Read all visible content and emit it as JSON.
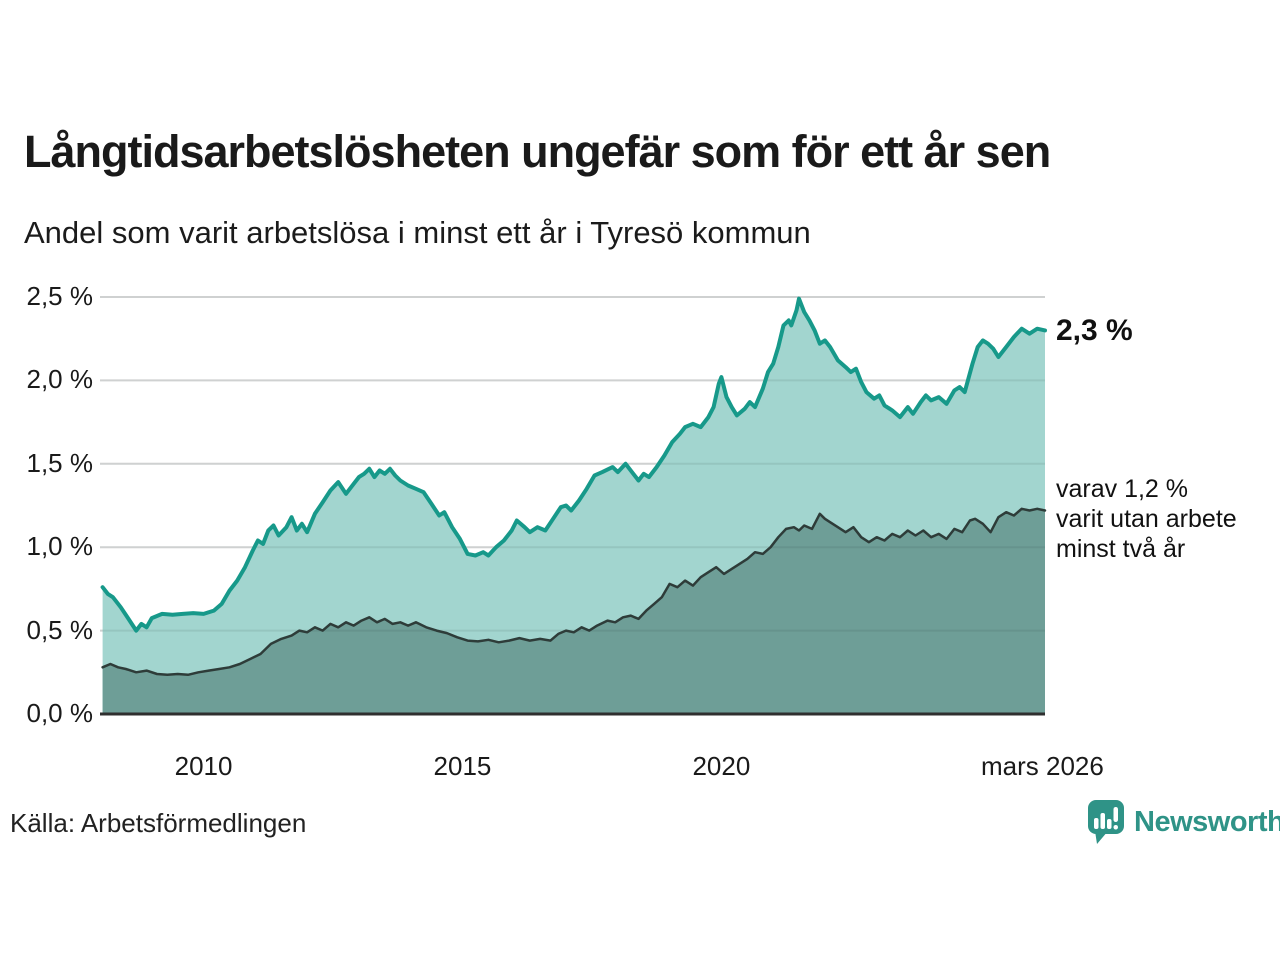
{
  "header": {
    "title": "Långtidsarbetslösheten ungefär som för ett år sen",
    "subtitle": "Andel som varit arbetslösa i minst ett år i Tyresö kommun"
  },
  "annotations": {
    "end_label": "2,3 %",
    "inner_label_lines": [
      "varav 1,2 %",
      "varit utan arbete",
      "minst två år"
    ]
  },
  "footer": {
    "source": "Källa: Arbetsförmedlingen",
    "logo_text": "Newsworthy"
  },
  "colors": {
    "series1_line": "#17998a",
    "series1_fill": "#a2d5cf",
    "series2_line": "#2e3c39",
    "series2_fill": "#6e9e97",
    "grid": "#e2e2e2",
    "grid_overlay": "rgba(40,60,55,0.10)",
    "axis_line": "#2f2f2f",
    "logo_teal": "#2f9387"
  },
  "chart_data": {
    "type": "area",
    "title": "Långtidsarbetslösheten ungefär som för ett år sen",
    "subtitle": "Andel som varit arbetslösa i minst ett år i Tyresö kommun",
    "unit": "%",
    "grid": true,
    "legend_position": "right-annotations",
    "x_axis": {
      "domain": [
        2008.0,
        2026.25
      ],
      "ticks": [
        2010,
        2015,
        2020,
        2026.2
      ],
      "tick_labels": [
        "2010",
        "2015",
        "2020",
        "mars 2026"
      ]
    },
    "y_axis": {
      "domain": [
        0,
        2.5
      ],
      "ticks": [
        0,
        0.5,
        1.0,
        1.5,
        2.0,
        2.5
      ],
      "tick_labels": [
        "0,0 %",
        "0,5 %",
        "1,0 %",
        "1,5 %",
        "2,0 %",
        "2,5 %"
      ]
    },
    "series": [
      {
        "name": "Arbetslösa minst ett år",
        "end_value": 2.3,
        "end_value_label": "2,3 %",
        "points": [
          [
            2008.05,
            0.76
          ],
          [
            2008.15,
            0.72
          ],
          [
            2008.25,
            0.7
          ],
          [
            2008.4,
            0.64
          ],
          [
            2008.55,
            0.57
          ],
          [
            2008.7,
            0.5
          ],
          [
            2008.8,
            0.54
          ],
          [
            2008.9,
            0.52
          ],
          [
            2009.0,
            0.575
          ],
          [
            2009.2,
            0.6
          ],
          [
            2009.4,
            0.595
          ],
          [
            2009.6,
            0.6
          ],
          [
            2009.8,
            0.605
          ],
          [
            2010.0,
            0.6
          ],
          [
            2010.2,
            0.62
          ],
          [
            2010.35,
            0.66
          ],
          [
            2010.5,
            0.74
          ],
          [
            2010.65,
            0.8
          ],
          [
            2010.8,
            0.88
          ],
          [
            2010.95,
            0.98
          ],
          [
            2011.05,
            1.04
          ],
          [
            2011.15,
            1.02
          ],
          [
            2011.25,
            1.1
          ],
          [
            2011.35,
            1.13
          ],
          [
            2011.45,
            1.07
          ],
          [
            2011.6,
            1.12
          ],
          [
            2011.7,
            1.18
          ],
          [
            2011.8,
            1.1
          ],
          [
            2011.9,
            1.14
          ],
          [
            2012.0,
            1.09
          ],
          [
            2012.15,
            1.2
          ],
          [
            2012.3,
            1.27
          ],
          [
            2012.45,
            1.34
          ],
          [
            2012.6,
            1.39
          ],
          [
            2012.75,
            1.32
          ],
          [
            2012.9,
            1.38
          ],
          [
            2013.0,
            1.42
          ],
          [
            2013.1,
            1.44
          ],
          [
            2013.2,
            1.47
          ],
          [
            2013.3,
            1.42
          ],
          [
            2013.4,
            1.46
          ],
          [
            2013.5,
            1.44
          ],
          [
            2013.6,
            1.47
          ],
          [
            2013.7,
            1.43
          ],
          [
            2013.8,
            1.4
          ],
          [
            2013.95,
            1.37
          ],
          [
            2014.1,
            1.35
          ],
          [
            2014.25,
            1.33
          ],
          [
            2014.4,
            1.26
          ],
          [
            2014.55,
            1.19
          ],
          [
            2014.65,
            1.21
          ],
          [
            2014.8,
            1.12
          ],
          [
            2014.95,
            1.05
          ],
          [
            2015.1,
            0.96
          ],
          [
            2015.25,
            0.95
          ],
          [
            2015.4,
            0.97
          ],
          [
            2015.5,
            0.95
          ],
          [
            2015.65,
            1.0
          ],
          [
            2015.8,
            1.04
          ],
          [
            2015.95,
            1.1
          ],
          [
            2016.05,
            1.16
          ],
          [
            2016.2,
            1.12
          ],
          [
            2016.3,
            1.09
          ],
          [
            2016.45,
            1.12
          ],
          [
            2016.6,
            1.1
          ],
          [
            2016.75,
            1.17
          ],
          [
            2016.9,
            1.24
          ],
          [
            2017.0,
            1.25
          ],
          [
            2017.1,
            1.22
          ],
          [
            2017.25,
            1.28
          ],
          [
            2017.4,
            1.35
          ],
          [
            2017.55,
            1.43
          ],
          [
            2017.7,
            1.45
          ],
          [
            2017.9,
            1.48
          ],
          [
            2018.0,
            1.45
          ],
          [
            2018.15,
            1.5
          ],
          [
            2018.3,
            1.44
          ],
          [
            2018.4,
            1.4
          ],
          [
            2018.5,
            1.44
          ],
          [
            2018.6,
            1.42
          ],
          [
            2018.75,
            1.48
          ],
          [
            2018.9,
            1.55
          ],
          [
            2019.05,
            1.63
          ],
          [
            2019.2,
            1.68
          ],
          [
            2019.3,
            1.72
          ],
          [
            2019.45,
            1.74
          ],
          [
            2019.6,
            1.72
          ],
          [
            2019.75,
            1.78
          ],
          [
            2019.85,
            1.84
          ],
          [
            2019.95,
            1.98
          ],
          [
            2020.0,
            2.02
          ],
          [
            2020.1,
            1.9
          ],
          [
            2020.2,
            1.84
          ],
          [
            2020.3,
            1.79
          ],
          [
            2020.45,
            1.83
          ],
          [
            2020.55,
            1.87
          ],
          [
            2020.65,
            1.84
          ],
          [
            2020.8,
            1.95
          ],
          [
            2020.9,
            2.05
          ],
          [
            2021.0,
            2.1
          ],
          [
            2021.1,
            2.2
          ],
          [
            2021.2,
            2.33
          ],
          [
            2021.3,
            2.36
          ],
          [
            2021.35,
            2.33
          ],
          [
            2021.45,
            2.42
          ],
          [
            2021.5,
            2.49
          ],
          [
            2021.6,
            2.41
          ],
          [
            2021.7,
            2.36
          ],
          [
            2021.8,
            2.3
          ],
          [
            2021.9,
            2.22
          ],
          [
            2022.0,
            2.24
          ],
          [
            2022.1,
            2.2
          ],
          [
            2022.25,
            2.12
          ],
          [
            2022.4,
            2.08
          ],
          [
            2022.5,
            2.05
          ],
          [
            2022.6,
            2.07
          ],
          [
            2022.7,
            1.99
          ],
          [
            2022.8,
            1.93
          ],
          [
            2022.95,
            1.89
          ],
          [
            2023.05,
            1.91
          ],
          [
            2023.15,
            1.85
          ],
          [
            2023.3,
            1.82
          ],
          [
            2023.45,
            1.78
          ],
          [
            2023.6,
            1.84
          ],
          [
            2023.7,
            1.8
          ],
          [
            2023.85,
            1.87
          ],
          [
            2023.95,
            1.91
          ],
          [
            2024.05,
            1.88
          ],
          [
            2024.2,
            1.9
          ],
          [
            2024.35,
            1.86
          ],
          [
            2024.5,
            1.94
          ],
          [
            2024.6,
            1.96
          ],
          [
            2024.7,
            1.93
          ],
          [
            2024.85,
            2.1
          ],
          [
            2024.95,
            2.2
          ],
          [
            2025.05,
            2.24
          ],
          [
            2025.15,
            2.22
          ],
          [
            2025.25,
            2.19
          ],
          [
            2025.35,
            2.14
          ],
          [
            2025.5,
            2.2
          ],
          [
            2025.65,
            2.26
          ],
          [
            2025.8,
            2.31
          ],
          [
            2025.95,
            2.28
          ],
          [
            2026.1,
            2.31
          ],
          [
            2026.25,
            2.3
          ]
        ]
      },
      {
        "name": "varav utan arbete minst två år",
        "end_value": 1.2,
        "end_value_label": "varav 1,2 % varit utan arbete minst två år",
        "points": [
          [
            2008.05,
            0.28
          ],
          [
            2008.2,
            0.3
          ],
          [
            2008.35,
            0.28
          ],
          [
            2008.5,
            0.27
          ],
          [
            2008.7,
            0.25
          ],
          [
            2008.9,
            0.26
          ],
          [
            2009.1,
            0.24
          ],
          [
            2009.3,
            0.235
          ],
          [
            2009.5,
            0.24
          ],
          [
            2009.7,
            0.235
          ],
          [
            2009.9,
            0.25
          ],
          [
            2010.1,
            0.26
          ],
          [
            2010.3,
            0.27
          ],
          [
            2010.5,
            0.28
          ],
          [
            2010.7,
            0.3
          ],
          [
            2010.9,
            0.33
          ],
          [
            2011.1,
            0.36
          ],
          [
            2011.3,
            0.42
          ],
          [
            2011.5,
            0.45
          ],
          [
            2011.7,
            0.47
          ],
          [
            2011.85,
            0.5
          ],
          [
            2012.0,
            0.49
          ],
          [
            2012.15,
            0.52
          ],
          [
            2012.3,
            0.5
          ],
          [
            2012.45,
            0.54
          ],
          [
            2012.6,
            0.52
          ],
          [
            2012.75,
            0.55
          ],
          [
            2012.9,
            0.53
          ],
          [
            2013.05,
            0.56
          ],
          [
            2013.2,
            0.58
          ],
          [
            2013.35,
            0.55
          ],
          [
            2013.5,
            0.57
          ],
          [
            2013.65,
            0.54
          ],
          [
            2013.8,
            0.55
          ],
          [
            2013.95,
            0.53
          ],
          [
            2014.1,
            0.55
          ],
          [
            2014.3,
            0.52
          ],
          [
            2014.5,
            0.5
          ],
          [
            2014.7,
            0.485
          ],
          [
            2014.9,
            0.46
          ],
          [
            2015.1,
            0.44
          ],
          [
            2015.3,
            0.435
          ],
          [
            2015.5,
            0.445
          ],
          [
            2015.7,
            0.43
          ],
          [
            2015.9,
            0.44
          ],
          [
            2016.1,
            0.455
          ],
          [
            2016.3,
            0.44
          ],
          [
            2016.5,
            0.45
          ],
          [
            2016.7,
            0.44
          ],
          [
            2016.85,
            0.48
          ],
          [
            2017.0,
            0.5
          ],
          [
            2017.15,
            0.49
          ],
          [
            2017.3,
            0.52
          ],
          [
            2017.45,
            0.5
          ],
          [
            2017.6,
            0.53
          ],
          [
            2017.8,
            0.56
          ],
          [
            2017.95,
            0.55
          ],
          [
            2018.1,
            0.58
          ],
          [
            2018.25,
            0.59
          ],
          [
            2018.4,
            0.57
          ],
          [
            2018.55,
            0.62
          ],
          [
            2018.7,
            0.66
          ],
          [
            2018.85,
            0.7
          ],
          [
            2019.0,
            0.78
          ],
          [
            2019.15,
            0.76
          ],
          [
            2019.3,
            0.8
          ],
          [
            2019.45,
            0.77
          ],
          [
            2019.6,
            0.82
          ],
          [
            2019.75,
            0.85
          ],
          [
            2019.9,
            0.88
          ],
          [
            2020.05,
            0.84
          ],
          [
            2020.2,
            0.87
          ],
          [
            2020.35,
            0.9
          ],
          [
            2020.5,
            0.93
          ],
          [
            2020.65,
            0.97
          ],
          [
            2020.8,
            0.96
          ],
          [
            2020.95,
            1.0
          ],
          [
            2021.1,
            1.06
          ],
          [
            2021.25,
            1.11
          ],
          [
            2021.4,
            1.12
          ],
          [
            2021.5,
            1.1
          ],
          [
            2021.6,
            1.13
          ],
          [
            2021.75,
            1.11
          ],
          [
            2021.9,
            1.2
          ],
          [
            2022.0,
            1.17
          ],
          [
            2022.1,
            1.15
          ],
          [
            2022.25,
            1.12
          ],
          [
            2022.4,
            1.09
          ],
          [
            2022.55,
            1.12
          ],
          [
            2022.7,
            1.06
          ],
          [
            2022.85,
            1.03
          ],
          [
            2023.0,
            1.06
          ],
          [
            2023.15,
            1.04
          ],
          [
            2023.3,
            1.08
          ],
          [
            2023.45,
            1.06
          ],
          [
            2023.6,
            1.1
          ],
          [
            2023.75,
            1.07
          ],
          [
            2023.9,
            1.1
          ],
          [
            2024.05,
            1.06
          ],
          [
            2024.2,
            1.08
          ],
          [
            2024.35,
            1.05
          ],
          [
            2024.5,
            1.11
          ],
          [
            2024.65,
            1.09
          ],
          [
            2024.8,
            1.16
          ],
          [
            2024.9,
            1.17
          ],
          [
            2025.05,
            1.14
          ],
          [
            2025.2,
            1.09
          ],
          [
            2025.35,
            1.18
          ],
          [
            2025.5,
            1.21
          ],
          [
            2025.65,
            1.19
          ],
          [
            2025.8,
            1.23
          ],
          [
            2025.95,
            1.22
          ],
          [
            2026.1,
            1.23
          ],
          [
            2026.25,
            1.22
          ]
        ]
      }
    ]
  }
}
